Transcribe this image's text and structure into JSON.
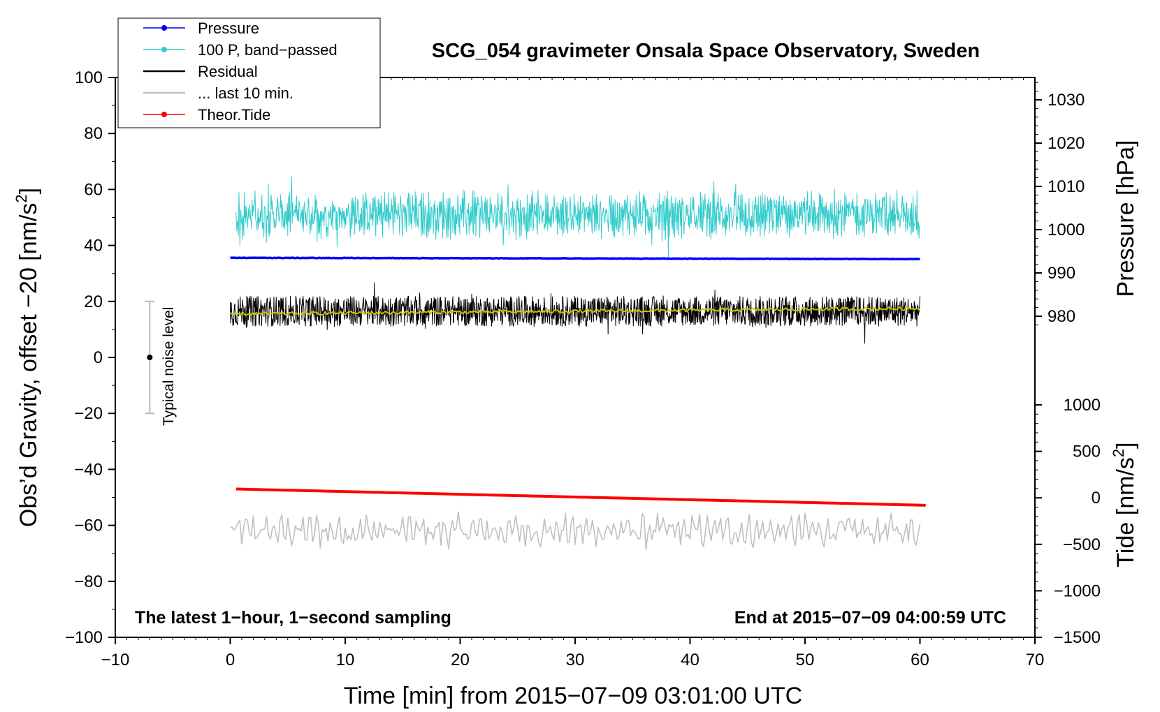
{
  "chart_data": {
    "type": "line",
    "title": "SCG_054 gravimeter Onsala Space Observatory, Sweden",
    "xlabel": "Time [min] from 2015−07−09 03:01:00 UTC",
    "ylabel": "Obs’d Gravity, offset −20 [nm/s",
    "ylabel_sup": "2",
    "ylabel_end": "]",
    "y2label": "Pressure [hPa]",
    "y3label": "Tide [nm/s",
    "y3label_sup": "2",
    "y3label_end": "]",
    "xlim": [
      -10,
      70
    ],
    "ylim": [
      -100,
      100
    ],
    "pressure_ylim": [
      975,
      1035
    ],
    "tide_ylim": [
      -1500,
      1000
    ],
    "x_ticks": [
      "−10",
      "0",
      "10",
      "20",
      "30",
      "40",
      "50",
      "60",
      "70"
    ],
    "x_tick_values": [
      -10,
      0,
      10,
      20,
      30,
      40,
      50,
      60,
      70
    ],
    "y_ticks": [
      "−100",
      "−80",
      "−60",
      "−40",
      "−20",
      "0",
      "20",
      "40",
      "60",
      "80",
      "100"
    ],
    "y_tick_values": [
      -100,
      -80,
      -60,
      -40,
      -20,
      0,
      20,
      40,
      60,
      80,
      100
    ],
    "pressure_ticks": [
      "980",
      "990",
      "1000",
      "1010",
      "1020",
      "1030"
    ],
    "pressure_tick_values": [
      980,
      990,
      1000,
      1010,
      1020,
      1030
    ],
    "tide_ticks": [
      "−1500",
      "−1000",
      "−500",
      "0",
      "500",
      "1000"
    ],
    "tide_tick_values": [
      -1500,
      -1000,
      -500,
      0,
      500,
      1000
    ],
    "legend_position": "top-left",
    "legend": [
      {
        "label": "Pressure",
        "color": "#0000ff",
        "marker": true
      },
      {
        "label": "100 P, band−passed",
        "color": "#33cccc",
        "marker": true
      },
      {
        "label": "Residual",
        "color": "#000000",
        "marker": false
      },
      {
        "label": "... last 10 min.",
        "color": "#c0c0c0",
        "marker": false
      },
      {
        "label": "Theor.Tide",
        "color": "#ff0000",
        "marker": true
      }
    ],
    "noise_bar": {
      "label": "Typical noise level",
      "x": -7,
      "center": 0,
      "low": -20,
      "high": 20
    },
    "annotation_left": "The latest 1−hour, 1−second sampling",
    "annotation_right": "End at 2015−07−09 04:00:59 UTC",
    "series": [
      {
        "name": "Pressure",
        "axis": "pressure",
        "color": "#0000ff",
        "x_range": [
          0,
          60
        ],
        "start": 993.5,
        "end": 993.2,
        "noise": 0.1
      },
      {
        "name": "100 P, band−passed",
        "axis": "gravity",
        "color": "#33cccc",
        "x_range": [
          0.5,
          60
        ],
        "mean": 51,
        "amplitude": 7,
        "min": 30,
        "max": 65
      },
      {
        "name": "Residual",
        "axis": "gravity",
        "color": "#000000",
        "x_range": [
          0,
          60
        ],
        "mean": 16.5,
        "amplitude": 6,
        "min": 5,
        "max": 28
      },
      {
        "name": "Residual smoothed",
        "axis": "gravity",
        "color": "#c8c800",
        "x_range": [
          0,
          60
        ],
        "start": 15.5,
        "end": 17.5
      },
      {
        "name": "... last 10 min.",
        "axis": "gravity",
        "color": "#c0c0c0",
        "x_range": [
          0,
          60
        ],
        "mean": -62,
        "amplitude": 5,
        "min": -72,
        "max": -52
      },
      {
        "name": "Theor.Tide",
        "axis": "tide",
        "color": "#ff0000",
        "x_range": [
          0.5,
          60.5
        ],
        "start": 95,
        "end": -80
      }
    ]
  }
}
